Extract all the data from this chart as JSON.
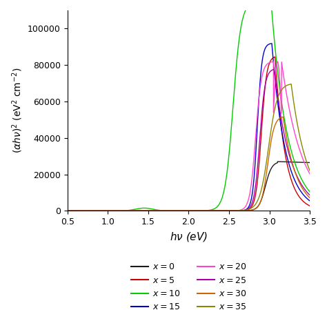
{
  "title": "",
  "xlabel": "$h\\nu$ (eV)",
  "ylabel": "$(\\alpha h\\nu)^{2}$ (eV$^{2}$ cm$^{-2}$)",
  "xlim": [
    0.5,
    3.5
  ],
  "ylim": [
    0,
    110000
  ],
  "yticks": [
    0,
    20000,
    40000,
    60000,
    80000,
    100000
  ],
  "xticks": [
    0.5,
    1.0,
    1.5,
    2.0,
    2.5,
    3.0,
    3.5
  ],
  "series": [
    {
      "label": "$x = 0$",
      "color": "#1a1a1a"
    },
    {
      "label": "$x = 5$",
      "color": "#cc0000"
    },
    {
      "label": "$x = 10$",
      "color": "#00cc00"
    },
    {
      "label": "$x = 15$",
      "color": "#0000cc"
    },
    {
      "label": "$x = 20$",
      "color": "#ff44cc"
    },
    {
      "label": "$x = 25$",
      "color": "#aa00aa"
    },
    {
      "label": "$x = 30$",
      "color": "#cc6600"
    },
    {
      "label": "$x = 35$",
      "color": "#888800"
    }
  ],
  "background_color": "#ffffff"
}
